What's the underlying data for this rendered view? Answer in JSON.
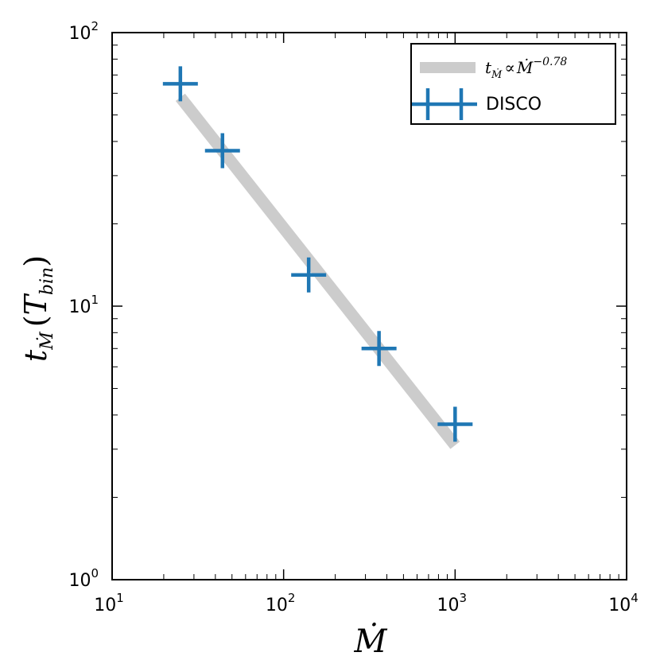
{
  "chart_data": {
    "type": "scatter",
    "scale": {
      "x": "log",
      "y": "log"
    },
    "xlim": [
      10,
      10000
    ],
    "ylim": [
      1,
      100
    ],
    "x_ticks": [
      {
        "base": "10",
        "exp": "1"
      },
      {
        "base": "10",
        "exp": "2"
      },
      {
        "base": "10",
        "exp": "3"
      },
      {
        "base": "10",
        "exp": "4"
      }
    ],
    "y_ticks": [
      {
        "base": "10",
        "exp": "0"
      },
      {
        "base": "10",
        "exp": "1"
      },
      {
        "base": "10",
        "exp": "2"
      }
    ],
    "xlabel": "Ṁ",
    "ylabel": {
      "main": "t",
      "sub": "Ṁ",
      "paren_open": "(",
      "T": "T",
      "T_sub": "bin",
      "paren_close": ")"
    },
    "series": [
      {
        "name": "DISCO",
        "color": "#1f77b4",
        "marker": "+",
        "x": [
          25,
          44,
          140,
          360,
          1000
        ],
        "y": [
          65,
          37,
          13,
          7,
          3.7
        ]
      }
    ],
    "fit_line": {
      "color": "#cccccc",
      "exponent": -0.78,
      "x": [
        25,
        1000
      ],
      "y": [
        58,
        3.1
      ],
      "label": {
        "t": "t",
        "sub": "Ṁ",
        "propto": "∝",
        "base": "Ṁ",
        "exp": "−0.78"
      }
    },
    "legend_position": "top-right"
  }
}
